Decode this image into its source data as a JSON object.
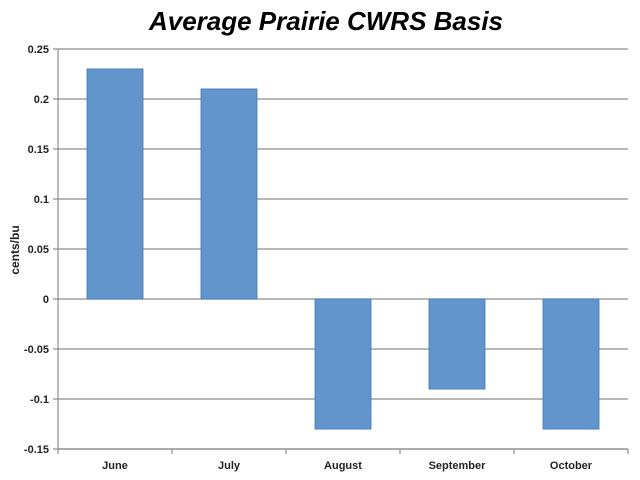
{
  "chart_data": {
    "type": "bar",
    "title": "Average Prairie CWRS Basis",
    "xlabel": "",
    "ylabel": "cents/bu",
    "categories": [
      "June",
      "July",
      "August",
      "September",
      "October"
    ],
    "values": [
      0.23,
      0.21,
      -0.13,
      -0.09,
      -0.13
    ],
    "ylim": [
      -0.15,
      0.25
    ],
    "yticks": [
      0.25,
      0.2,
      0.15,
      0.1,
      0.05,
      0,
      -0.05,
      -0.1,
      -0.15
    ],
    "ytick_labels": [
      "0.25",
      "0.2",
      "0.15",
      "0.1",
      "0.05",
      "0",
      "-0.05",
      "-0.1",
      "-0.15"
    ],
    "grid": true,
    "legend": "none",
    "bar_color": "#6195cb"
  }
}
